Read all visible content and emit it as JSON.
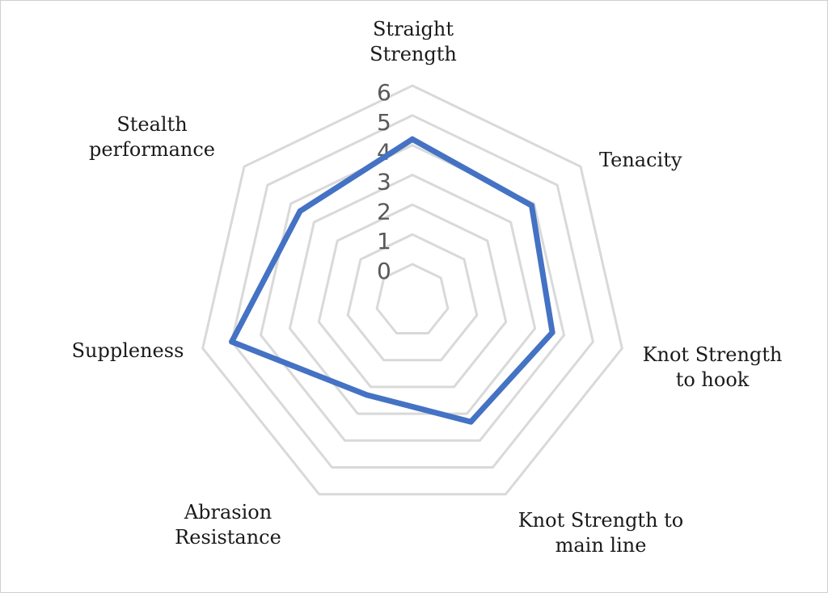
{
  "chart_data": {
    "type": "radar",
    "axes": [
      [
        "Straight",
        "Strength"
      ],
      [
        "Tenacity"
      ],
      [
        "Knot Strength",
        "to hook"
      ],
      [
        "Knot Strength to",
        "main line"
      ],
      [
        "Abrasion",
        "Resistance"
      ],
      [
        "Suppleness"
      ],
      [
        "Stealth",
        "performance"
      ]
    ],
    "series": [
      {
        "values": [
          4.2,
          3.9,
          3.6,
          3.3,
          2.3,
          5.0,
          3.6
        ]
      }
    ],
    "scale": {
      "min": 0,
      "max": 6,
      "step": 1
    },
    "ticks": [
      "0",
      "1",
      "2",
      "3",
      "4",
      "5",
      "6"
    ],
    "grid": true,
    "colors": {
      "series": "#4472c4",
      "grid": "#d9d9d9"
    }
  }
}
